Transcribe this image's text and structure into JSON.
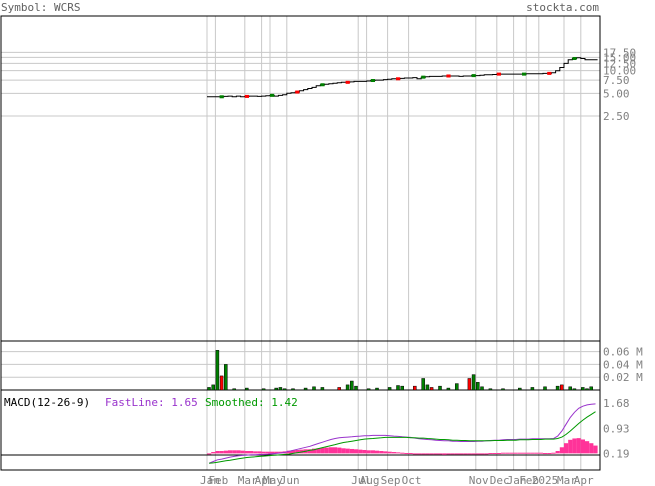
{
  "header": {
    "symbol_label": "Symbol: WCRS",
    "site": "stockta.com"
  },
  "chart_data": [
    {
      "type": "line",
      "panel": "price",
      "y_scale": "log",
      "ylim": [
        2.5,
        20
      ],
      "yticks": [
        "17.50",
        "15.00",
        "12.50",
        "10.00",
        "7.50",
        "5.00",
        "2.50"
      ],
      "ytick_values": [
        17.5,
        15,
        12.5,
        10,
        7.5,
        5,
        2.5
      ],
      "x_labels": [
        "Jan",
        "Feb",
        "Mar",
        "Apr",
        "May",
        "Jun",
        "Jul",
        "Aug",
        "Sep",
        "Oct",
        "Nov",
        "Dec",
        "Jan",
        "Feb",
        "2025",
        "Mar",
        "Apr"
      ],
      "x_label_index": [
        0,
        2,
        9,
        13,
        15,
        19,
        36,
        38,
        43,
        48,
        64,
        69,
        73,
        76,
        79,
        85,
        89
      ],
      "series": [
        {
          "values": [
            4.5,
            4.5,
            4.5,
            4.5,
            4.55,
            4.6,
            4.5,
            4.6,
            4.5,
            4.55,
            4.6,
            4.6,
            4.55,
            4.6,
            4.65,
            4.7,
            4.6,
            4.7,
            4.8,
            5.0,
            5.1,
            5.2,
            5.4,
            5.6,
            5.8,
            6.0,
            6.3,
            6.5,
            6.6,
            6.7,
            6.8,
            6.9,
            7.0,
            7.0,
            7.1,
            7.2,
            7.2,
            7.2,
            7.3,
            7.4,
            7.5,
            7.5,
            7.6,
            7.7,
            7.8,
            7.8,
            7.9,
            8.0,
            8.0,
            8.1,
            7.8,
            8.2,
            8.3,
            8.4,
            8.4,
            8.4,
            8.5,
            8.5,
            8.5,
            8.5,
            8.4,
            8.5,
            8.5,
            8.6,
            8.6,
            8.7,
            8.8,
            8.8,
            8.9,
            9.0,
            9.0,
            9.0,
            9.0,
            9.0,
            9.0,
            9.0,
            9.1,
            9.1,
            9.1,
            9.1,
            9.2,
            9.2,
            9.4,
            10.0,
            11.0,
            12.5,
            14.0,
            14.5,
            14.8,
            14.5,
            14.0,
            14.0,
            14.0
          ]
        }
      ]
    },
    {
      "type": "bar",
      "panel": "volume",
      "yticks": [
        "0.06 M",
        "0.04 M",
        "0.02 M"
      ],
      "ytick_values": [
        0.06,
        0.04,
        0.02
      ],
      "ylim": [
        0,
        0.075
      ],
      "bars": [
        {
          "i": 0,
          "v": 0.004,
          "c": "up"
        },
        {
          "i": 1,
          "v": 0.008,
          "c": "up"
        },
        {
          "i": 2,
          "v": 0.062,
          "c": "up"
        },
        {
          "i": 3,
          "v": 0.022,
          "c": "down"
        },
        {
          "i": 4,
          "v": 0.04,
          "c": "up"
        },
        {
          "i": 6,
          "v": 0.002,
          "c": "up"
        },
        {
          "i": 9,
          "v": 0.003,
          "c": "up"
        },
        {
          "i": 13,
          "v": 0.002,
          "c": "up"
        },
        {
          "i": 16,
          "v": 0.003,
          "c": "up"
        },
        {
          "i": 17,
          "v": 0.004,
          "c": "up"
        },
        {
          "i": 18,
          "v": 0.002,
          "c": "up"
        },
        {
          "i": 20,
          "v": 0.002,
          "c": "up"
        },
        {
          "i": 23,
          "v": 0.003,
          "c": "up"
        },
        {
          "i": 25,
          "v": 0.005,
          "c": "up"
        },
        {
          "i": 27,
          "v": 0.004,
          "c": "up"
        },
        {
          "i": 31,
          "v": 0.004,
          "c": "down"
        },
        {
          "i": 33,
          "v": 0.008,
          "c": "up"
        },
        {
          "i": 34,
          "v": 0.014,
          "c": "up"
        },
        {
          "i": 35,
          "v": 0.006,
          "c": "up"
        },
        {
          "i": 38,
          "v": 0.002,
          "c": "up"
        },
        {
          "i": 40,
          "v": 0.003,
          "c": "up"
        },
        {
          "i": 43,
          "v": 0.004,
          "c": "up"
        },
        {
          "i": 45,
          "v": 0.007,
          "c": "up"
        },
        {
          "i": 46,
          "v": 0.006,
          "c": "up"
        },
        {
          "i": 49,
          "v": 0.006,
          "c": "down"
        },
        {
          "i": 51,
          "v": 0.018,
          "c": "up"
        },
        {
          "i": 52,
          "v": 0.008,
          "c": "up"
        },
        {
          "i": 53,
          "v": 0.004,
          "c": "down"
        },
        {
          "i": 55,
          "v": 0.006,
          "c": "up"
        },
        {
          "i": 57,
          "v": 0.003,
          "c": "up"
        },
        {
          "i": 59,
          "v": 0.01,
          "c": "up"
        },
        {
          "i": 62,
          "v": 0.018,
          "c": "down"
        },
        {
          "i": 63,
          "v": 0.024,
          "c": "up"
        },
        {
          "i": 64,
          "v": 0.012,
          "c": "up"
        },
        {
          "i": 65,
          "v": 0.005,
          "c": "up"
        },
        {
          "i": 67,
          "v": 0.002,
          "c": "up"
        },
        {
          "i": 70,
          "v": 0.002,
          "c": "up"
        },
        {
          "i": 74,
          "v": 0.003,
          "c": "up"
        },
        {
          "i": 77,
          "v": 0.004,
          "c": "up"
        },
        {
          "i": 80,
          "v": 0.005,
          "c": "up"
        },
        {
          "i": 83,
          "v": 0.006,
          "c": "up"
        },
        {
          "i": 84,
          "v": 0.008,
          "c": "down"
        },
        {
          "i": 86,
          "v": 0.005,
          "c": "up"
        },
        {
          "i": 87,
          "v": 0.002,
          "c": "up"
        },
        {
          "i": 89,
          "v": 0.004,
          "c": "up"
        },
        {
          "i": 90,
          "v": 0.002,
          "c": "up"
        },
        {
          "i": 91,
          "v": 0.005,
          "c": "up"
        }
      ]
    },
    {
      "type": "line",
      "panel": "macd",
      "title": "MACD(12-26-9)",
      "fastline_label": "FastLine: 1.65",
      "smoothed_label": "Smoothed: 1.42",
      "yticks": [
        "1.68",
        "0.93",
        "0.19"
      ],
      "ytick_values": [
        1.68,
        0.93,
        0.19
      ],
      "ylim": [
        -0.3,
        2.0
      ],
      "fast": [
        -0.1,
        -0.05,
        0.0,
        0.02,
        0.05,
        0.08,
        0.1,
        0.12,
        0.13,
        0.14,
        0.15,
        0.15,
        0.16,
        0.16,
        0.17,
        0.18,
        0.19,
        0.2,
        0.22,
        0.25,
        0.28,
        0.31,
        0.34,
        0.37,
        0.4,
        0.44,
        0.48,
        0.52,
        0.56,
        0.6,
        0.63,
        0.65,
        0.66,
        0.67,
        0.68,
        0.69,
        0.7,
        0.71,
        0.71,
        0.72,
        0.72,
        0.72,
        0.72,
        0.71,
        0.7,
        0.69,
        0.68,
        0.67,
        0.66,
        0.64,
        0.62,
        0.61,
        0.6,
        0.59,
        0.58,
        0.57,
        0.56,
        0.56,
        0.55,
        0.55,
        0.54,
        0.54,
        0.54,
        0.54,
        0.55,
        0.55,
        0.56,
        0.57,
        0.58,
        0.58,
        0.59,
        0.6,
        0.6,
        0.6,
        0.61,
        0.61,
        0.61,
        0.62,
        0.62,
        0.62,
        0.62,
        0.62,
        0.63,
        0.7,
        0.85,
        1.05,
        1.25,
        1.4,
        1.52,
        1.58,
        1.62,
        1.64,
        1.65
      ],
      "smoothed": [
        -0.1,
        -0.09,
        -0.07,
        -0.05,
        -0.03,
        -0.01,
        0.01,
        0.03,
        0.05,
        0.07,
        0.08,
        0.09,
        0.1,
        0.11,
        0.12,
        0.13,
        0.14,
        0.15,
        0.16,
        0.17,
        0.19,
        0.21,
        0.23,
        0.25,
        0.28,
        0.3,
        0.33,
        0.36,
        0.39,
        0.42,
        0.45,
        0.48,
        0.51,
        0.53,
        0.55,
        0.57,
        0.59,
        0.61,
        0.62,
        0.63,
        0.64,
        0.65,
        0.66,
        0.66,
        0.66,
        0.66,
        0.66,
        0.66,
        0.65,
        0.65,
        0.64,
        0.64,
        0.63,
        0.62,
        0.61,
        0.6,
        0.6,
        0.59,
        0.58,
        0.58,
        0.57,
        0.57,
        0.56,
        0.56,
        0.56,
        0.56,
        0.56,
        0.56,
        0.57,
        0.57,
        0.57,
        0.58,
        0.58,
        0.58,
        0.59,
        0.59,
        0.59,
        0.6,
        0.6,
        0.6,
        0.61,
        0.61,
        0.61,
        0.63,
        0.67,
        0.75,
        0.85,
        0.96,
        1.07,
        1.17,
        1.26,
        1.34,
        1.42
      ]
    }
  ],
  "colors": {
    "frame": "#000000",
    "grid": "#c8c8c8",
    "price": "#000000",
    "up": "#008000",
    "down": "#ff0000",
    "fast": "#9933cc",
    "smoothed": "#009900",
    "histogram": "#ff3399",
    "label": "#606060"
  }
}
